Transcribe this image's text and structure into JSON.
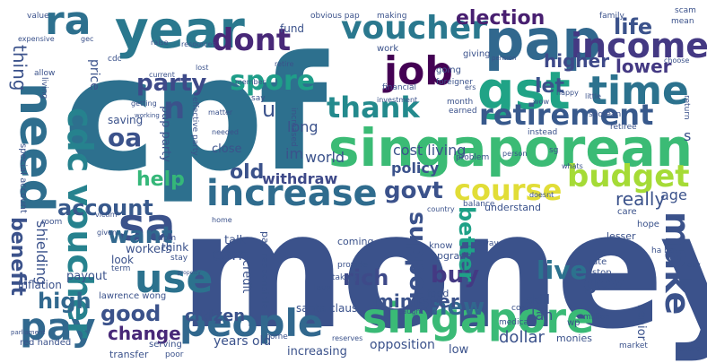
{
  "words": [
    {
      "text": "cpf",
      "color": "#2d708e"
    },
    {
      "text": "money",
      "color": "#3b528b"
    },
    {
      "text": "singaporean",
      "color": "#3bbb75"
    },
    {
      "text": "pap",
      "color": "#31688e"
    },
    {
      "text": "singapore",
      "color": "#3aba76"
    },
    {
      "text": "year",
      "color": "#2a788e"
    },
    {
      "text": "need",
      "color": "#2e6e8e"
    },
    {
      "text": "gst",
      "color": "#20a386"
    },
    {
      "text": "job",
      "color": "#440154"
    },
    {
      "text": "people",
      "color": "#31688e"
    },
    {
      "text": "increase",
      "color": "#2f6c8e"
    },
    {
      "text": "time",
      "color": "#2c728e"
    },
    {
      "text": "retirement",
      "color": "#38598c"
    },
    {
      "text": "income",
      "color": "#443983"
    },
    {
      "text": "voucher",
      "color": "#2a788e"
    },
    {
      "text": "dont",
      "color": "#482878"
    },
    {
      "text": "ra",
      "color": "#2d708e"
    },
    {
      "text": "sa",
      "color": "#3b528b"
    },
    {
      "text": "pay",
      "color": "#31688e"
    },
    {
      "text": "use",
      "color": "#2c728e"
    },
    {
      "text": "budget",
      "color": "#a5db36"
    },
    {
      "text": "course",
      "color": "#e1dd37"
    },
    {
      "text": "make",
      "color": "#3b528b"
    },
    {
      "text": "cdc voucher",
      "color": "#26828e"
    },
    {
      "text": "party",
      "color": "#3e4a89"
    },
    {
      "text": "spore",
      "color": "#1f9e89"
    },
    {
      "text": "thank",
      "color": "#238a8d"
    },
    {
      "text": "election",
      "color": "#481f70"
    },
    {
      "text": "oa",
      "color": "#3b528b"
    },
    {
      "text": "account",
      "color": "#38598c"
    },
    {
      "text": "want",
      "color": "#31688e"
    },
    {
      "text": "help",
      "color": "#35b779"
    },
    {
      "text": "let",
      "color": "#3b528b"
    },
    {
      "text": "life",
      "color": "#3b528b"
    },
    {
      "text": "lower",
      "color": "#443983"
    },
    {
      "text": "higher",
      "color": "#3e4989"
    },
    {
      "text": "govt",
      "color": "#3b528b"
    },
    {
      "text": "support",
      "color": "#3b528b"
    },
    {
      "text": "change",
      "color": "#482878"
    },
    {
      "text": "good",
      "color": "#3b528b"
    },
    {
      "text": "high",
      "color": "#31688e"
    },
    {
      "text": "buy",
      "color": "#443983"
    },
    {
      "text": "better",
      "color": "#1fa187"
    },
    {
      "text": "live",
      "color": "#2c728e"
    },
    {
      "text": "new",
      "color": "#31688e"
    },
    {
      "text": "old",
      "color": "#3b528b"
    },
    {
      "text": "withdraw",
      "color": "#3e4989"
    },
    {
      "text": "benefit",
      "color": "#3b528b"
    },
    {
      "text": "citizen",
      "color": "#3b528b"
    },
    {
      "text": "minister",
      "color": "#3b528b"
    },
    {
      "text": "rich",
      "color": "#3e4a89"
    },
    {
      "text": "policy",
      "color": "#3b528b"
    },
    {
      "text": "gov",
      "color": "#3b528b"
    },
    {
      "text": "world",
      "color": "#3b528b"
    },
    {
      "text": "cost living",
      "color": "#3b528b"
    },
    {
      "text": "earn",
      "color": "#3b528b"
    },
    {
      "text": "long",
      "color": "#3b528b"
    },
    {
      "text": "u",
      "color": "#3b528b"
    },
    {
      "text": "n",
      "color": "#3b528b"
    },
    {
      "text": "im",
      "color": "#3b528b"
    },
    {
      "text": "s",
      "color": "#3b528b"
    },
    {
      "text": "really",
      "color": "#3b528b"
    },
    {
      "text": "age",
      "color": "#3b528b"
    },
    {
      "text": "thing",
      "color": "#3b528b"
    },
    {
      "text": "shielding",
      "color": "#3b528b"
    },
    {
      "text": "lah",
      "color": "#3b528b"
    },
    {
      "text": "skill",
      "color": "#3b528b"
    },
    {
      "text": "years old",
      "color": "#3b528b"
    },
    {
      "text": "increasing",
      "color": "#3b528b"
    },
    {
      "text": "opposition",
      "color": "#3b528b"
    },
    {
      "text": "santa claus",
      "color": "#3b528b"
    },
    {
      "text": "senior",
      "color": "#3b528b"
    },
    {
      "text": "dollar",
      "color": "#3b528b"
    },
    {
      "text": "low",
      "color": "#3b528b"
    },
    {
      "text": "talk",
      "color": "#3b528b"
    },
    {
      "text": "close",
      "color": "#3b528b"
    },
    {
      "text": "saving",
      "color": "#3b528b"
    },
    {
      "text": "pap party",
      "color": "#3b528b"
    },
    {
      "text": "price",
      "color": "#3b528b"
    },
    {
      "text": "workers",
      "color": "#3b528b"
    },
    {
      "text": "think",
      "color": "#3b528b"
    },
    {
      "text": "look",
      "color": "#3b528b"
    },
    {
      "text": "payout",
      "color": "#3b528b"
    },
    {
      "text": "inflation",
      "color": "#3b528b"
    },
    {
      "text": "lawrence wong",
      "color": "#3b528b"
    },
    {
      "text": "red handed",
      "color": "#3b528b"
    },
    {
      "text": "transfer",
      "color": "#3b528b"
    },
    {
      "text": "serving",
      "color": "#3b528b"
    },
    {
      "text": "credit",
      "color": "#3b528b"
    },
    {
      "text": "pap responsible",
      "color": "#3b528b"
    },
    {
      "text": "coming",
      "color": "#3b528b"
    },
    {
      "text": "upgrade",
      "color": "#3b528b"
    },
    {
      "text": "food",
      "color": "#3b528b"
    },
    {
      "text": "know",
      "color": "#3b528b"
    },
    {
      "text": "provide",
      "color": "#3b528b"
    },
    {
      "text": "taking",
      "color": "#3b528b"
    },
    {
      "text": "hope",
      "color": "#3b528b"
    },
    {
      "text": "care",
      "color": "#3b528b"
    },
    {
      "text": "rate",
      "color": "#3b528b"
    },
    {
      "text": "stop",
      "color": "#3b528b"
    },
    {
      "text": "wp",
      "color": "#3b528b"
    },
    {
      "text": "million",
      "color": "#3b528b"
    },
    {
      "text": "monies",
      "color": "#3b528b"
    },
    {
      "text": "market",
      "color": "#3b528b"
    },
    {
      "text": "future",
      "color": "#3b528b"
    },
    {
      "text": "cost",
      "color": "#3b528b"
    },
    {
      "text": "medical",
      "color": "#3b528b"
    },
    {
      "text": "reserves",
      "color": "#3b528b"
    },
    {
      "text": "caught red",
      "color": "#3b528b"
    },
    {
      "text": "parliament",
      "color": "#3b528b"
    },
    {
      "text": "poor",
      "color": "#3b528b"
    },
    {
      "text": "come",
      "color": "#3b528b"
    },
    {
      "text": "love",
      "color": "#3b528b"
    },
    {
      "text": "lesser",
      "color": "#3b528b"
    },
    {
      "text": "ha ha",
      "color": "#3b528b"
    },
    {
      "text": "day",
      "color": "#3b528b"
    },
    {
      "text": "dpm",
      "color": "#3b528b"
    },
    {
      "text": "stay",
      "color": "#3b528b"
    },
    {
      "text": "term",
      "color": "#3b528b"
    },
    {
      "text": "room",
      "color": "#3b528b"
    },
    {
      "text": "victim",
      "color": "#3b528b"
    },
    {
      "text": "given",
      "color": "#3b528b"
    },
    {
      "text": "home",
      "color": "#3b528b"
    },
    {
      "text": "special account",
      "color": "#3b528b"
    },
    {
      "text": "living",
      "color": "#3b528b"
    },
    {
      "text": "allow",
      "color": "#3b528b"
    },
    {
      "text": "expensive",
      "color": "#3b528b"
    },
    {
      "text": "value",
      "color": "#3b528b"
    },
    {
      "text": "gec",
      "color": "#3b528b"
    },
    {
      "text": "cdc",
      "color": "#3b528b"
    },
    {
      "text": "raise",
      "color": "#3b528b"
    },
    {
      "text": "fund",
      "color": "#3b528b"
    },
    {
      "text": "resources",
      "color": "#3b528b"
    },
    {
      "text": "obvious pap",
      "color": "#3b528b"
    },
    {
      "text": "making",
      "color": "#3b528b"
    },
    {
      "text": "family",
      "color": "#3b528b"
    },
    {
      "text": "scam",
      "color": "#3b528b"
    },
    {
      "text": "mean",
      "color": "#3b528b"
    },
    {
      "text": "choose",
      "color": "#3b528b"
    },
    {
      "text": "work",
      "color": "#3b528b"
    },
    {
      "text": "giving",
      "color": "#3b528b"
    },
    {
      "text": "going",
      "color": "#3b528b"
    },
    {
      "text": "say",
      "color": "#3b528b"
    },
    {
      "text": "member",
      "color": "#3b528b"
    },
    {
      "text": "lost",
      "color": "#3b528b"
    },
    {
      "text": "current",
      "color": "#3b528b"
    },
    {
      "text": "retire",
      "color": "#3b528b"
    },
    {
      "text": "financial",
      "color": "#3b528b"
    },
    {
      "text": "investment",
      "color": "#3b528b"
    },
    {
      "text": "foreigner",
      "color": "#3b528b"
    },
    {
      "text": "month",
      "color": "#3b528b"
    },
    {
      "text": "earned",
      "color": "#3b528b"
    },
    {
      "text": "instead",
      "color": "#3b528b"
    },
    {
      "text": "sporean",
      "color": "#3b528b"
    },
    {
      "text": "retiree",
      "color": "#3b528b"
    },
    {
      "text": "happy",
      "color": "#3b528b"
    },
    {
      "text": "little",
      "color": "#3b528b"
    },
    {
      "text": "wow",
      "color": "#3b528b"
    },
    {
      "text": "sg",
      "color": "#3b528b"
    },
    {
      "text": "person",
      "color": "#3b528b"
    },
    {
      "text": "problem",
      "color": "#3b528b"
    },
    {
      "text": "balance",
      "color": "#3b528b"
    },
    {
      "text": "understand",
      "color": "#3b528b"
    },
    {
      "text": "doesnt",
      "color": "#3b528b"
    },
    {
      "text": "whats",
      "color": "#3b528b"
    },
    {
      "text": "away",
      "color": "#3b528b"
    },
    {
      "text": "country",
      "color": "#3b528b"
    },
    {
      "text": "return",
      "color": "#3b528b"
    },
    {
      "text": "effective party",
      "color": "#3b528b"
    },
    {
      "text": "matter",
      "color": "#3b528b"
    },
    {
      "text": "needed",
      "color": "#3b528b"
    },
    {
      "text": "increased",
      "color": "#3b528b"
    },
    {
      "text": "getting",
      "color": "#3b528b"
    },
    {
      "text": "working",
      "color": "#3b528b"
    },
    {
      "text": "property",
      "color": "#3b528b"
    },
    {
      "text": "pension",
      "color": "#3b528b"
    },
    {
      "text": "ers",
      "color": "#3b528b"
    }
  ]
}
